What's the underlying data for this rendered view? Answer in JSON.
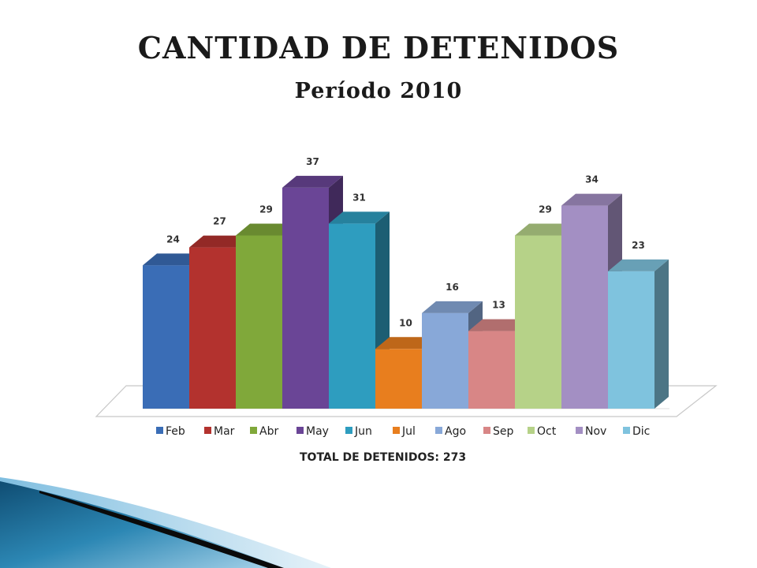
{
  "slide": {
    "title": "CANTIDAD DE DETENIDOS",
    "subtitle": "Período 2010",
    "total_note": "TOTAL DE DETENIDOS: 273"
  },
  "chart_data": {
    "type": "bar",
    "title": "",
    "xlabel": "",
    "ylabel": "",
    "ylim": [
      0,
      40
    ],
    "grid": false,
    "style": "3d-columns",
    "legend": {
      "placement": "bottom"
    },
    "categories": [
      "Feb",
      "Mar",
      "Abr",
      "May",
      "Jun",
      "Jul",
      "Ago",
      "Sep",
      "Oct",
      "Nov",
      "Dic"
    ],
    "values": [
      24,
      27,
      29,
      37,
      31,
      10,
      16,
      13,
      29,
      34,
      23
    ],
    "colors": [
      "#3A6DB6",
      "#B3322E",
      "#80A83A",
      "#6A4596",
      "#2E9DBF",
      "#E87E1E",
      "#88A8D8",
      "#D88686",
      "#B6D288",
      "#A38FC3",
      "#7FC3DE"
    ]
  }
}
